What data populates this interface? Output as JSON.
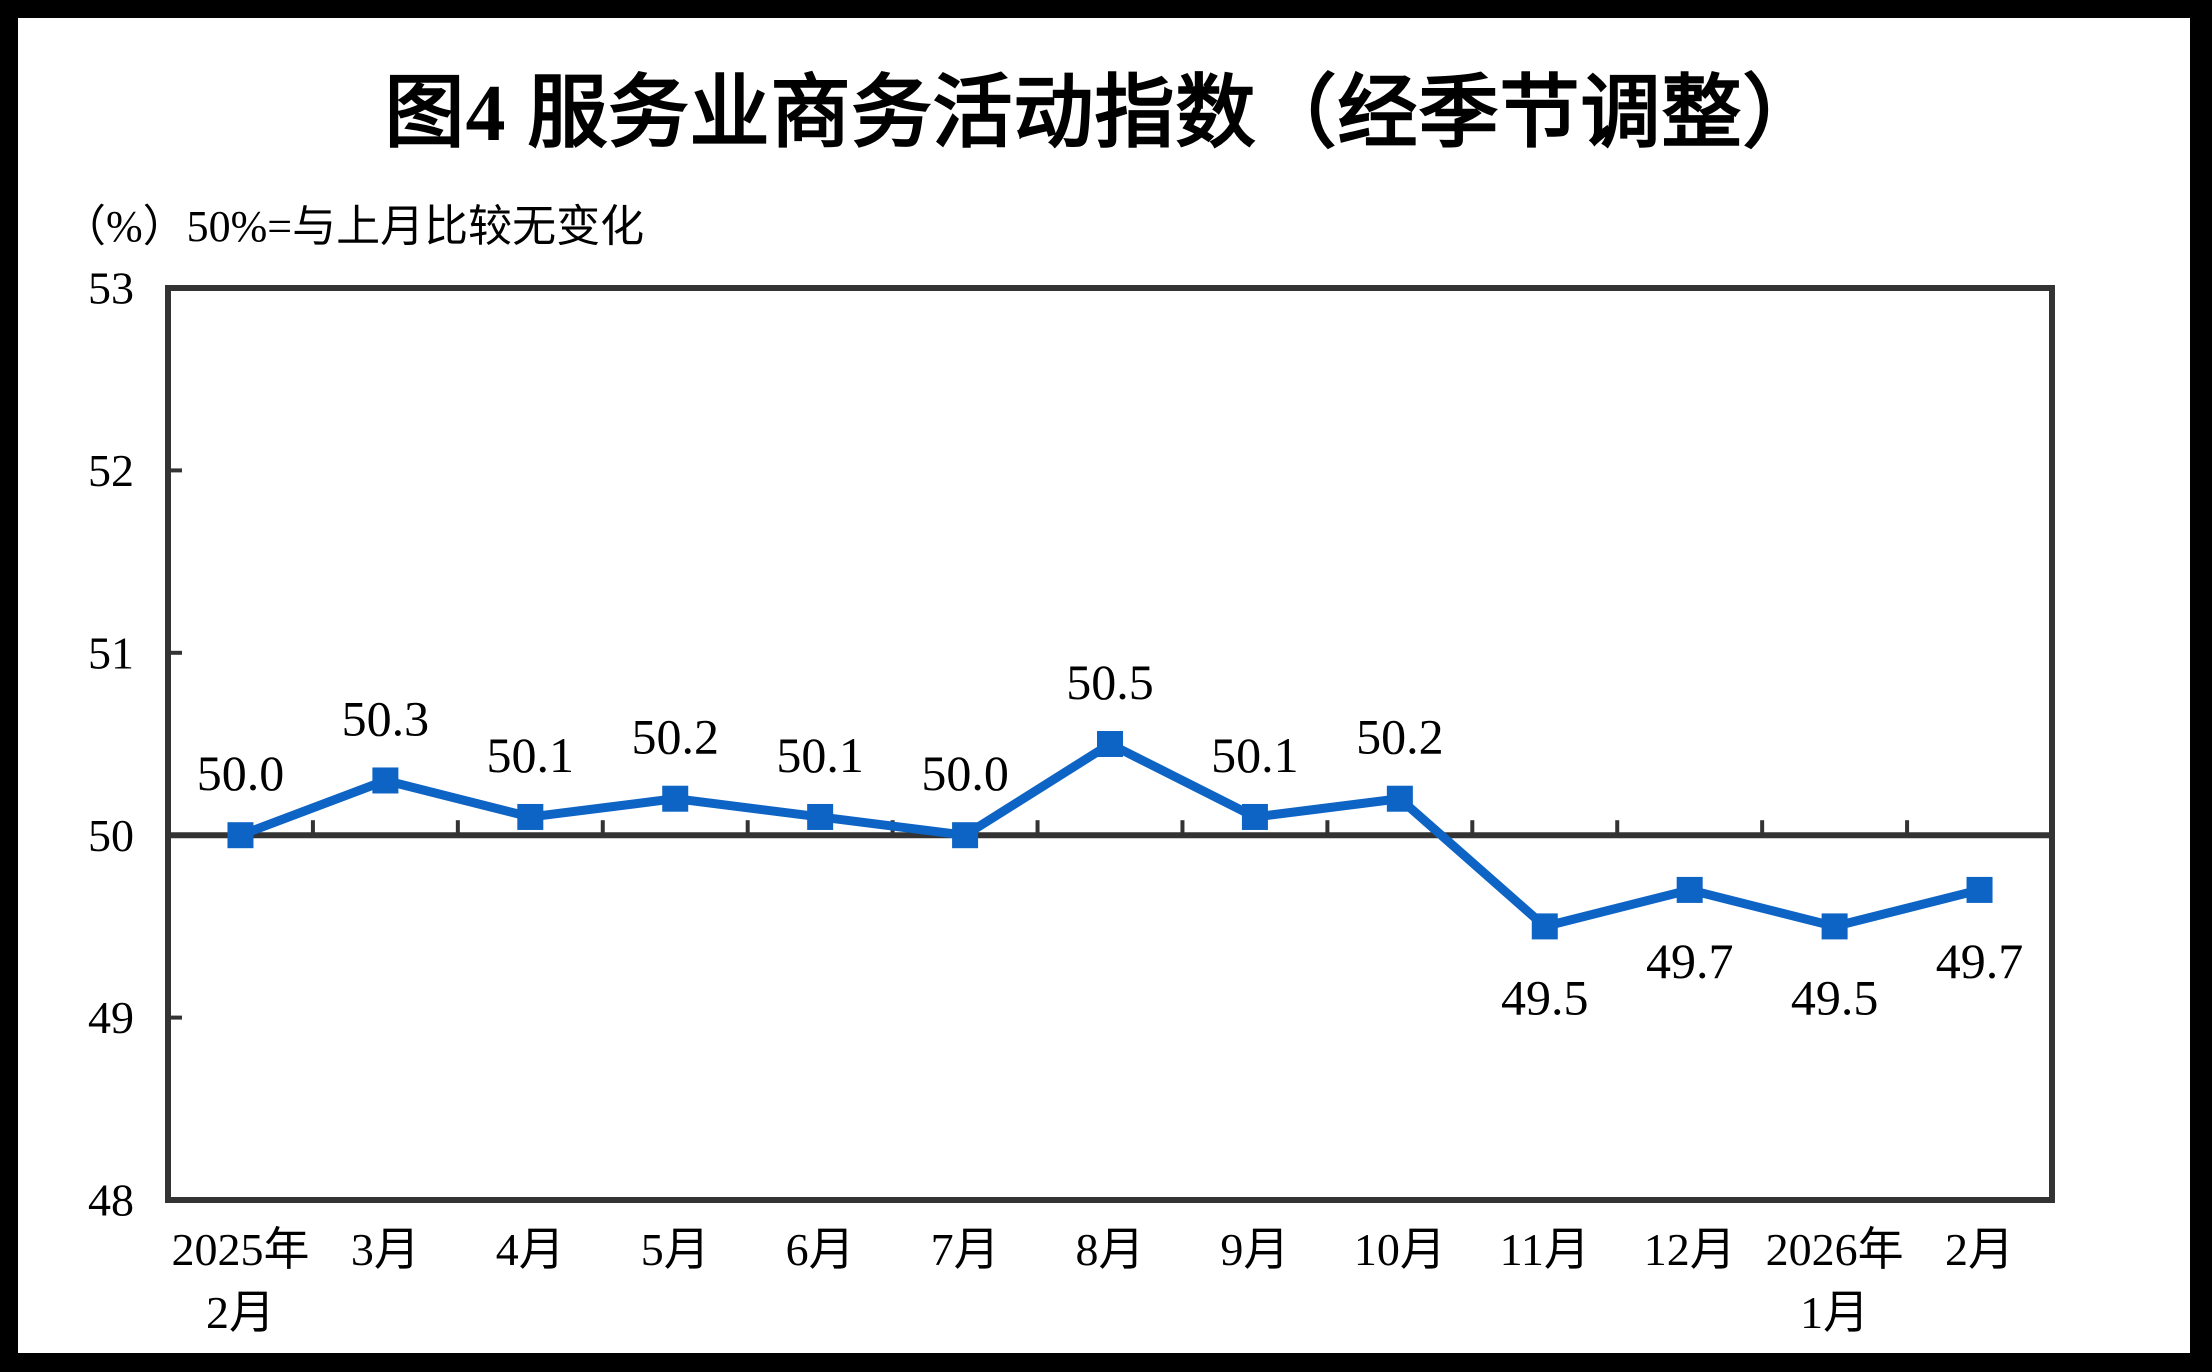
{
  "header": {
    "title": "图4 服务业商务活动指数（经季节调整）",
    "unit_note": "（%）50%=与上月比较无变化"
  },
  "chart_data": {
    "type": "line",
    "title": "图4 服务业商务活动指数（经季节调整）",
    "unit_note": "（%）50%=与上月比较无变化",
    "categories": [
      "2025年\n2月",
      "3月",
      "4月",
      "5月",
      "6月",
      "7月",
      "8月",
      "9月",
      "10月",
      "11月",
      "12月",
      "2026年\n1月",
      "2月"
    ],
    "series": [
      {
        "name": "服务业商务活动指数",
        "values": [
          50.0,
          50.3,
          50.1,
          50.2,
          50.1,
          50.0,
          50.5,
          50.1,
          50.2,
          49.5,
          49.7,
          49.5,
          49.7
        ]
      }
    ],
    "data_labels": [
      "50.0",
      "50.3",
      "50.1",
      "50.2",
      "50.1",
      "50.0",
      "50.5",
      "50.1",
      "50.2",
      "49.5",
      "49.7",
      "49.5",
      "49.7"
    ],
    "data_label_positions": [
      "above",
      "above",
      "above",
      "above",
      "above",
      "above",
      "above",
      "above",
      "above",
      "below",
      "below",
      "below",
      "below"
    ],
    "ylim": [
      48,
      53
    ],
    "yticks": [
      "48",
      "49",
      "50",
      "51",
      "52",
      "53"
    ],
    "reference_line_value": 50,
    "grid": false,
    "legend": "none",
    "marker": "square",
    "line_color": "#0D64C5",
    "axis_color": "#333333",
    "text_color": "#000000"
  }
}
